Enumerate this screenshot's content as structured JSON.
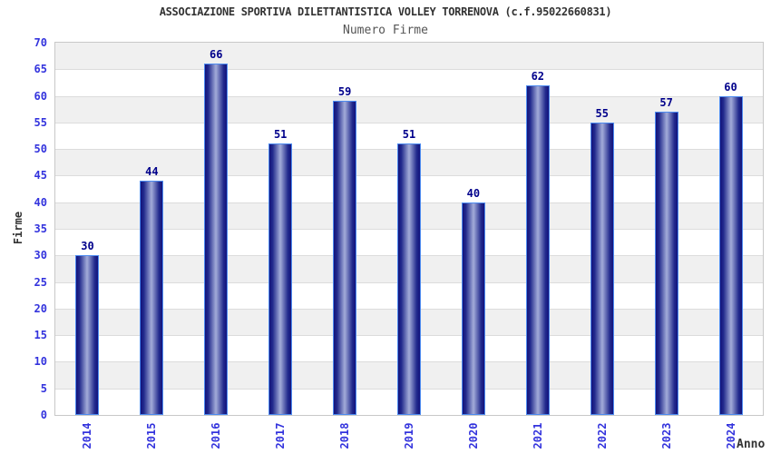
{
  "header": {
    "title": "ASSOCIAZIONE SPORTIVA DILETTANTISTICA VOLLEY TORRENOVA (c.f.95022660831)",
    "subtitle": "Numero Firme"
  },
  "chart_data": {
    "type": "bar",
    "title": "ASSOCIAZIONE SPORTIVA DILETTANTISTICA VOLLEY TORRENOVA (c.f.95022660831)",
    "subtitle": "Numero Firme",
    "categories": [
      "2014",
      "2015",
      "2016",
      "2017",
      "2018",
      "2019",
      "2020",
      "2021",
      "2022",
      "2023",
      "2024"
    ],
    "values": [
      30,
      44,
      66,
      51,
      59,
      51,
      40,
      62,
      55,
      57,
      60
    ],
    "xlabel": "Anno",
    "ylabel": "Firme",
    "ylim": [
      0,
      70
    ],
    "ytick_step": 5,
    "yticks": [
      0,
      5,
      10,
      15,
      20,
      25,
      30,
      35,
      40,
      45,
      50,
      55,
      60,
      65,
      70
    ],
    "grid": "horizontal-alternating-bands",
    "legend": "none",
    "value_labels": "above-bars",
    "colors": {
      "bar_edge": "#4d8bf0",
      "bar_dark": "#13137b",
      "bar_mid": "#222a8d",
      "bar_light": "#a3acd9",
      "value_label": "#00008b",
      "tick_label": "#3333dd",
      "axis_label": "#333333",
      "band_gray": "#f0f0f0",
      "band_white": "#ffffff",
      "gridline": "#dcdcdc",
      "plot_border": "#c8c8c8",
      "title": "#333333",
      "subtitle": "#555555"
    }
  }
}
